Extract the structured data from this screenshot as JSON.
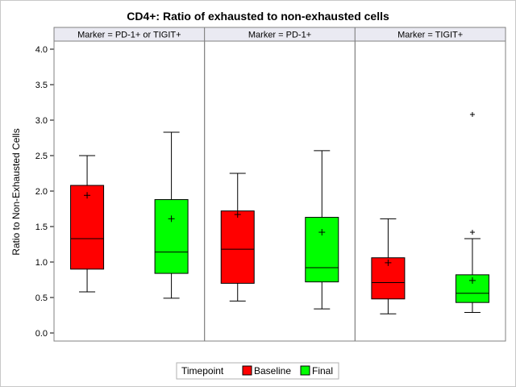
{
  "chart_data": {
    "type": "boxplot",
    "title": "CD4+: Ratio of exhausted to non-exhausted cells",
    "ylabel": "Ratio to Non-Exhausted Cells",
    "ylim": [
      -0.1,
      4.1
    ],
    "yticks": [
      0.0,
      0.5,
      1.0,
      1.5,
      2.0,
      2.5,
      3.0,
      3.5,
      4.0
    ],
    "ytick_labels": [
      "0.0",
      "0.5",
      "1.0",
      "1.5",
      "2.0",
      "2.5",
      "3.0",
      "3.5",
      "4.0"
    ],
    "legend": {
      "title": "Timepoint",
      "position": "bottom",
      "entries": [
        {
          "name": "Baseline",
          "color": "#ff0000"
        },
        {
          "name": "Final",
          "color": "#00ff00"
        }
      ]
    },
    "panels": [
      {
        "label": "Marker = PD-1+ or TIGIT+",
        "boxes": [
          {
            "group": "Baseline",
            "whisker_low": 0.58,
            "q1": 0.9,
            "median": 1.33,
            "q3": 2.08,
            "whisker_high": 2.5,
            "mean": 1.94,
            "outliers": []
          },
          {
            "group": "Final",
            "whisker_low": 0.49,
            "q1": 0.84,
            "median": 1.14,
            "q3": 1.88,
            "whisker_high": 2.83,
            "mean": 1.61,
            "outliers": []
          }
        ]
      },
      {
        "label": "Marker = PD-1+",
        "boxes": [
          {
            "group": "Baseline",
            "whisker_low": 0.45,
            "q1": 0.7,
            "median": 1.18,
            "q3": 1.72,
            "whisker_high": 2.25,
            "mean": 1.67,
            "outliers": []
          },
          {
            "group": "Final",
            "whisker_low": 0.34,
            "q1": 0.72,
            "median": 0.92,
            "q3": 1.63,
            "whisker_high": 2.57,
            "mean": 1.42,
            "outliers": []
          }
        ]
      },
      {
        "label": "Marker = TIGIT+",
        "boxes": [
          {
            "group": "Baseline",
            "whisker_low": 0.27,
            "q1": 0.48,
            "median": 0.71,
            "q3": 1.06,
            "whisker_high": 1.61,
            "mean": 0.99,
            "outliers": []
          },
          {
            "group": "Final",
            "whisker_low": 0.29,
            "q1": 0.43,
            "median": 0.56,
            "q3": 0.82,
            "whisker_high": 1.33,
            "mean": 0.74,
            "outliers": [
              1.42,
              3.08
            ]
          }
        ]
      }
    ]
  }
}
